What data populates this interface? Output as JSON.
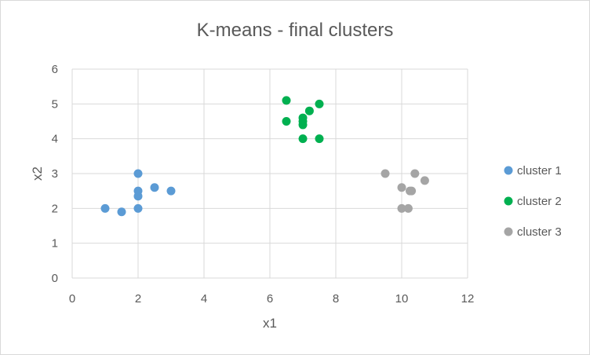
{
  "chart_data": {
    "type": "scatter",
    "title": "K-means - final clusters",
    "xlabel": "x1",
    "ylabel": "x2",
    "xlim": [
      0,
      12
    ],
    "ylim": [
      0,
      6
    ],
    "xticks": [
      0,
      2,
      4,
      6,
      8,
      10,
      12
    ],
    "yticks": [
      0,
      1,
      2,
      3,
      4,
      5,
      6
    ],
    "grid": true,
    "legend_position": "right",
    "series": [
      {
        "name": "cluster 1",
        "color": "#5b9bd5",
        "points": [
          [
            1.0,
            2.0
          ],
          [
            1.5,
            1.9
          ],
          [
            2.0,
            3.0
          ],
          [
            2.0,
            2.5
          ],
          [
            2.0,
            2.35
          ],
          [
            2.0,
            2.0
          ],
          [
            2.5,
            2.6
          ],
          [
            3.0,
            2.5
          ]
        ]
      },
      {
        "name": "cluster 2",
        "color": "#00b050",
        "points": [
          [
            6.5,
            5.1
          ],
          [
            6.5,
            4.5
          ],
          [
            7.0,
            4.6
          ],
          [
            7.0,
            4.5
          ],
          [
            7.0,
            4.4
          ],
          [
            7.0,
            4.0
          ],
          [
            7.2,
            4.8
          ],
          [
            7.5,
            5.0
          ],
          [
            7.5,
            4.0
          ]
        ]
      },
      {
        "name": "cluster 3",
        "color": "#a5a5a5",
        "points": [
          [
            9.5,
            3.0
          ],
          [
            10.0,
            2.6
          ],
          [
            10.0,
            2.0
          ],
          [
            10.2,
            2.0
          ],
          [
            10.25,
            2.5
          ],
          [
            10.3,
            2.5
          ],
          [
            10.4,
            3.0
          ],
          [
            10.7,
            2.8
          ]
        ]
      }
    ]
  }
}
